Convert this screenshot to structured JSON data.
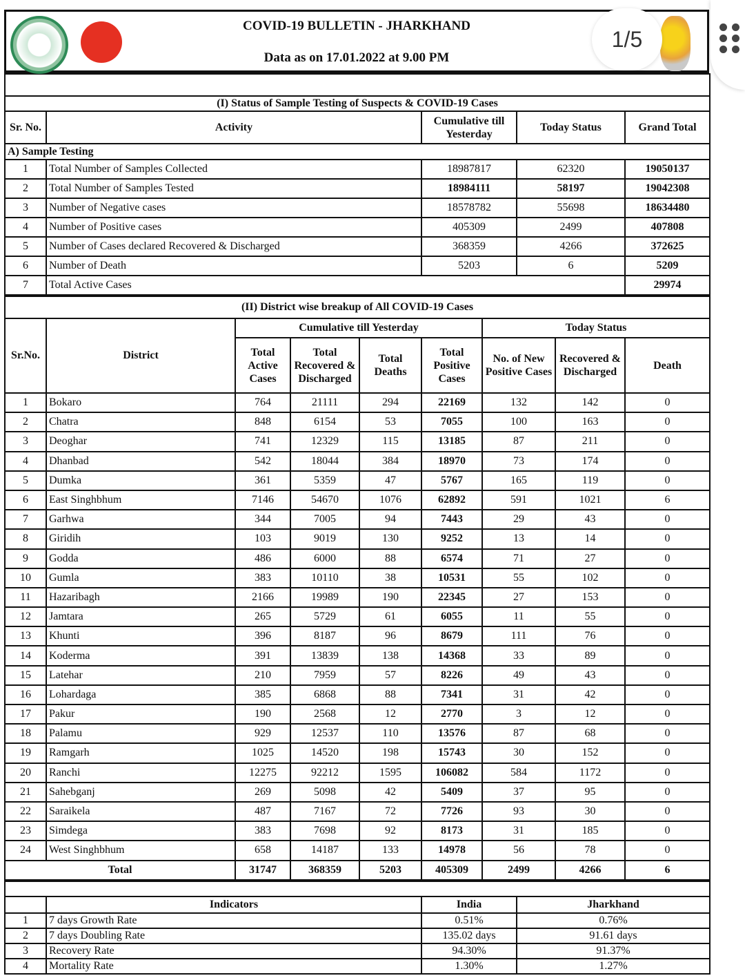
{
  "viewer": {
    "page_indicator": "1/5",
    "menu_icon": "more-dots-icon"
  },
  "header": {
    "title": "COVID-19 BULLETIN - JHARKHAND",
    "date": "Data as on 17.01.2022 at 9.00 PM"
  },
  "section1": {
    "title": "(I) Status of Sample Testing of Suspects & COVID-19 Cases",
    "columns": [
      "Sr. No.",
      "Activity",
      "Cumulative till Yesterday",
      "Today Status",
      "Grand Total"
    ],
    "subheading": "A) Sample Testing",
    "rows": [
      [
        "1",
        "Total Number of Samples Collected",
        "18987817",
        "62320",
        "19050137"
      ],
      [
        "2",
        "Total Number of Samples Tested",
        "18984111",
        "58197",
        "19042308"
      ],
      [
        "3",
        "Number of Negative cases",
        "18578782",
        "55698",
        "18634480"
      ],
      [
        "4",
        "Number of Positive cases",
        "405309",
        "2499",
        "407808"
      ],
      [
        "5",
        "Number of Cases declared Recovered & Discharged",
        "368359",
        "4266",
        "372625"
      ],
      [
        "6",
        "Number of Death",
        "5203",
        "6",
        "5209"
      ],
      [
        "7",
        "Total Active Cases",
        "",
        "",
        "29974"
      ]
    ]
  },
  "section2": {
    "title": "(II) District wise breakup of All COVID-19 Cases",
    "group_cumulative": "Cumulative till Yesterday",
    "group_today": "Today Status",
    "columns": [
      "Sr.No.",
      "District",
      "Total Active Cases",
      "Total Recovered & Discharged",
      "Total Deaths",
      "Total Positive Cases",
      "No. of New Positive Cases",
      "Recovered & Discharged",
      "Death"
    ],
    "rows": [
      [
        "1",
        "Bokaro",
        "764",
        "21111",
        "294",
        "22169",
        "132",
        "142",
        "0"
      ],
      [
        "2",
        "Chatra",
        "848",
        "6154",
        "53",
        "7055",
        "100",
        "163",
        "0"
      ],
      [
        "3",
        "Deoghar",
        "741",
        "12329",
        "115",
        "13185",
        "87",
        "211",
        "0"
      ],
      [
        "4",
        "Dhanbad",
        "542",
        "18044",
        "384",
        "18970",
        "73",
        "174",
        "0"
      ],
      [
        "5",
        "Dumka",
        "361",
        "5359",
        "47",
        "5767",
        "165",
        "119",
        "0"
      ],
      [
        "6",
        "East Singhbhum",
        "7146",
        "54670",
        "1076",
        "62892",
        "591",
        "1021",
        "6"
      ],
      [
        "7",
        "Garhwa",
        "344",
        "7005",
        "94",
        "7443",
        "29",
        "43",
        "0"
      ],
      [
        "8",
        "Giridih",
        "103",
        "9019",
        "130",
        "9252",
        "13",
        "14",
        "0"
      ],
      [
        "9",
        "Godda",
        "486",
        "6000",
        "88",
        "6574",
        "71",
        "27",
        "0"
      ],
      [
        "10",
        "Gumla",
        "383",
        "10110",
        "38",
        "10531",
        "55",
        "102",
        "0"
      ],
      [
        "11",
        "Hazaribagh",
        "2166",
        "19989",
        "190",
        "22345",
        "27",
        "153",
        "0"
      ],
      [
        "12",
        "Jamtara",
        "265",
        "5729",
        "61",
        "6055",
        "11",
        "55",
        "0"
      ],
      [
        "13",
        "Khunti",
        "396",
        "8187",
        "96",
        "8679",
        "111",
        "76",
        "0"
      ],
      [
        "14",
        "Koderma",
        "391",
        "13839",
        "138",
        "14368",
        "33",
        "89",
        "0"
      ],
      [
        "15",
        "Latehar",
        "210",
        "7959",
        "57",
        "8226",
        "49",
        "43",
        "0"
      ],
      [
        "16",
        "Lohardaga",
        "385",
        "6868",
        "88",
        "7341",
        "31",
        "42",
        "0"
      ],
      [
        "17",
        "Pakur",
        "190",
        "2568",
        "12",
        "2770",
        "3",
        "12",
        "0"
      ],
      [
        "18",
        "Palamu",
        "929",
        "12537",
        "110",
        "13576",
        "87",
        "68",
        "0"
      ],
      [
        "19",
        "Ramgarh",
        "1025",
        "14520",
        "198",
        "15743",
        "30",
        "152",
        "0"
      ],
      [
        "20",
        "Ranchi",
        "12275",
        "92212",
        "1595",
        "106082",
        "584",
        "1172",
        "0"
      ],
      [
        "21",
        "Sahebganj",
        "269",
        "5098",
        "42",
        "5409",
        "37",
        "95",
        "0"
      ],
      [
        "22",
        "Saraikela",
        "487",
        "7167",
        "72",
        "7726",
        "93",
        "30",
        "0"
      ],
      [
        "23",
        "Simdega",
        "383",
        "7698",
        "92",
        "8173",
        "31",
        "185",
        "0"
      ],
      [
        "24",
        "West Singhbhum",
        "658",
        "14187",
        "133",
        "14978",
        "56",
        "78",
        "0"
      ]
    ],
    "total": [
      "Total",
      "31747",
      "368359",
      "5203",
      "405309",
      "2499",
      "4266",
      "6"
    ]
  },
  "indicators": {
    "columns": [
      "Indicators",
      "India",
      "Jharkhand"
    ],
    "rows": [
      [
        "1",
        "7 days Growth Rate",
        "0.51%",
        "0.76%"
      ],
      [
        "2",
        "7 days Doubling Rate",
        "135.02 days",
        "91.61 days"
      ],
      [
        "3",
        "Recovery Rate",
        "94.30%",
        "91.37%"
      ],
      [
        "4",
        "Mortality Rate",
        "1.30%",
        "1.27%"
      ]
    ]
  }
}
